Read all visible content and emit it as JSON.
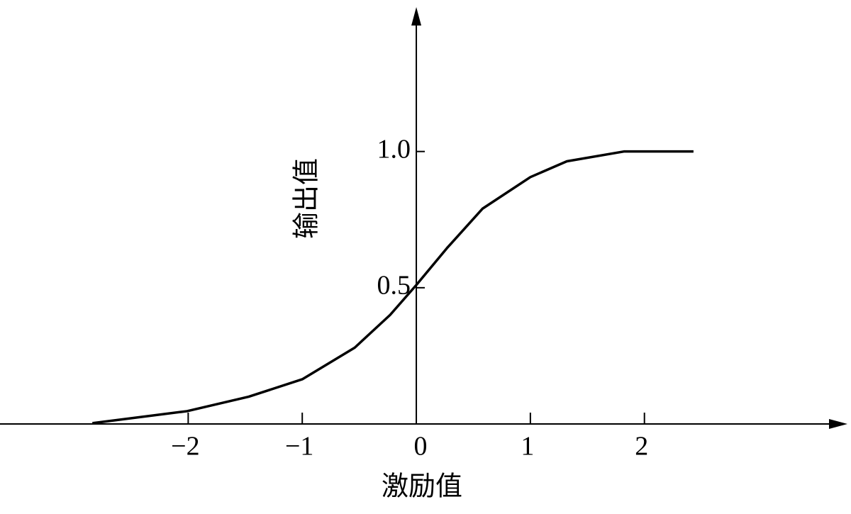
{
  "chart_data": {
    "type": "line",
    "x_label": "激励值",
    "y_label": "输出值",
    "x": [
      -2.84,
      -2.01,
      -1.47,
      -1.0,
      -0.54,
      -0.23,
      0,
      0.27,
      0.58,
      1.0,
      1.32,
      1.82,
      2.43
    ],
    "values": [
      0.003,
      0.047,
      0.1,
      0.164,
      0.28,
      0.4,
      0.51,
      0.646,
      0.79,
      0.906,
      0.964,
      1.0,
      1.0
    ],
    "color": "#000000",
    "xlim": [
      -3.65,
      3.78
    ],
    "ylim": [
      0,
      1.53
    ],
    "xticks": [
      {
        "value": -2,
        "label": "−2"
      },
      {
        "value": -1,
        "label": "−1"
      },
      0,
      1,
      2
    ],
    "yticks": [
      0.5,
      {
        "value": 1,
        "label": "1.0"
      }
    ]
  }
}
